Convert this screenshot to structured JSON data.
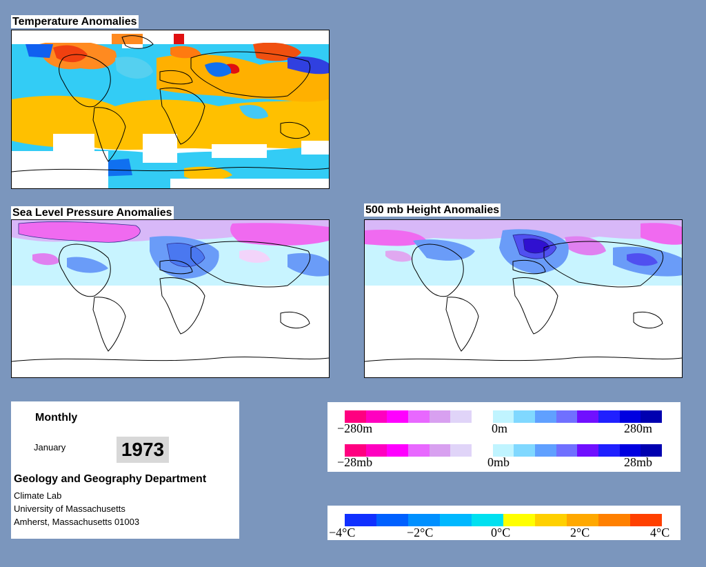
{
  "maps": {
    "temperature_title": "Temperature Anomalies",
    "slp_title": "Sea Level Pressure Anomalies",
    "height_title": "500 mb Height Anomalies"
  },
  "info": {
    "period": "Monthly",
    "month": "January",
    "year": "1973",
    "department": "Geology and Geography Department",
    "line1": "Climate Lab",
    "line2": "University of Massachusetts",
    "line3": "Amherst, Massachusetts 01003"
  },
  "height_scale": {
    "labels": [
      "−280m",
      "0m",
      "280m"
    ],
    "colors": [
      "#ff0080",
      "#ff00c0",
      "#ff00ff",
      "#e868ff",
      "#d8a0f0",
      "#e0d4f8",
      "#ffffff",
      "#c0f4ff",
      "#80d8ff",
      "#60a0ff",
      "#7070ff",
      "#7010ff",
      "#2020ff",
      "#0000e0",
      "#0000b0"
    ]
  },
  "slp_scale": {
    "labels": [
      "−28mb",
      "0mb",
      "28mb"
    ],
    "colors": [
      "#ff0080",
      "#ff00c0",
      "#ff00ff",
      "#e868ff",
      "#d8a0f0",
      "#e0d4f8",
      "#ffffff",
      "#c0f4ff",
      "#80d8ff",
      "#60a0ff",
      "#7070ff",
      "#7010ff",
      "#2020ff",
      "#0000e0",
      "#0000b0"
    ]
  },
  "temp_scale": {
    "labels": [
      "−4°C",
      "−2°C",
      "0°C",
      "2°C",
      "4°C"
    ],
    "colors": [
      "#1030ff",
      "#0060ff",
      "#0090ff",
      "#00b8ff",
      "#00e0f0",
      "#ffff00",
      "#ffd000",
      "#ffa800",
      "#ff8000",
      "#ff4000"
    ]
  }
}
